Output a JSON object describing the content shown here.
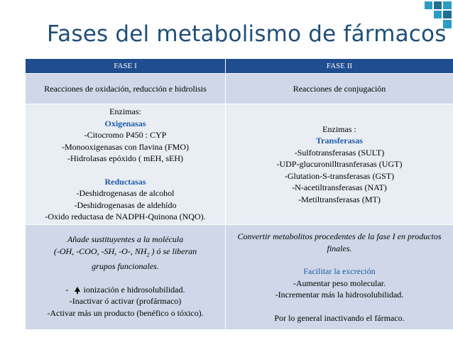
{
  "title": "Fases del metabolismo de fármacos",
  "colors": {
    "header": "#1f4d8f",
    "row_dark": "#cfd7e8",
    "row_light": "#e9edf4",
    "accent": "#1f5aa8",
    "title": "#1f4e79"
  },
  "table": {
    "headers": [
      "FASE I",
      "FASE II"
    ],
    "row1": {
      "fase1": "Reacciones de oxidación, reducción e hidrolisis",
      "fase2": "Reacciones de conjugación"
    },
    "row2": {
      "fase1": {
        "enzimas_label": "Enzimas:",
        "group1_title": "Oxigenasas",
        "group1_items": [
          "-Citocromo P450 : CYP",
          "-Monooxigenasas con flavina (FMO)",
          "-Hidrolasas epóxido ( mEH, sEH)"
        ],
        "group2_title": "Reductasas",
        "group2_items": [
          "-Deshidrogenasas de alcohol",
          "-Deshidrogenasas de aldehído",
          "-Oxido reductasa de NADPH-Quinona (NQO)."
        ]
      },
      "fase2": {
        "enzimas_label": "Enzimas :",
        "group_title": "Transferasas",
        "items": [
          "-Sulfotransferasas (SULT)",
          "-UDP-glucuronilltrasnferasas (UGT)",
          "-Glutation-S-transferasas (GST)",
          "-N-acetiltransferasas (NAT)",
          "-Metiltransferasas (MT)"
        ]
      }
    },
    "row3": {
      "fase1": {
        "line1": "Añade sustituyentes a la molécula",
        "line2_a": "(-OH, -COO, -SH, -O-, NH",
        "line2_sub": "2",
        "line2_b": " ) ó se liberan",
        "line3": "grupos funcionales.",
        "effect_prefix": "-",
        "effect_text": "ionización e hidrosolubilidad.",
        "line5": "-Inactivar ó activar (profármaco)",
        "line6": "-Activar más un producto (benéfico o tóxico)."
      },
      "fase2": {
        "line1": "Convertir metabolitos procedentes de la fase I en productos finales.",
        "subtitle": "Facilitar la excreción",
        "items": [
          "-Aumentar peso molecular.",
          "-Incrementar más la hidrosolubilidad."
        ],
        "conclusion": "Por lo general inactivando el fármaco."
      }
    }
  }
}
